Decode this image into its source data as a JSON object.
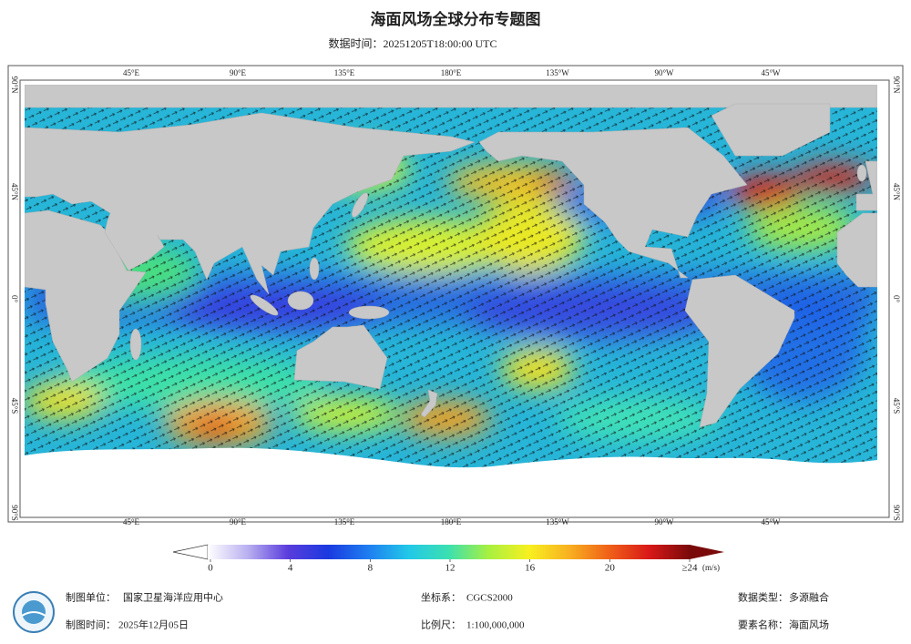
{
  "title": "海面风场全球分布专题图",
  "subtitle": "数据时间：20251205T18:00:00 UTC",
  "map": {
    "lon_labels": [
      "45°E",
      "90°E",
      "135°E",
      "180°E",
      "135°W",
      "90°W",
      "45°W"
    ],
    "lat_labels": [
      "90°N",
      "45°N",
      "0°",
      "45°S",
      "90°S"
    ]
  },
  "colorbar": {
    "range": [
      0,
      24
    ],
    "ticks": [
      0,
      4,
      8,
      12,
      16,
      20,
      {
        "value": 24,
        "label": "≥24"
      }
    ],
    "unit": "(m/s)",
    "colors": [
      "#ffffff",
      "#b9b0f0",
      "#5a3cdc",
      "#1a3ae0",
      "#1e7ef0",
      "#22c8e8",
      "#3ce0b0",
      "#a8f040",
      "#f8f020",
      "#f8b020",
      "#f06018",
      "#d81818",
      "#7a0a0a"
    ]
  },
  "footer": {
    "producer_label": "制图单位：",
    "producer": "国家卫星海洋应用中心",
    "date_label": "制图时间：",
    "date": "2025年12月05日",
    "crs_label": "坐标系：",
    "crs": "CGCS2000",
    "scale_label": "比例尺：",
    "scale": "1:100,000,000",
    "data_type_label": "数据类型：",
    "data_type": "多源融合",
    "element_label": "要素名称：",
    "element": "海面风场"
  }
}
